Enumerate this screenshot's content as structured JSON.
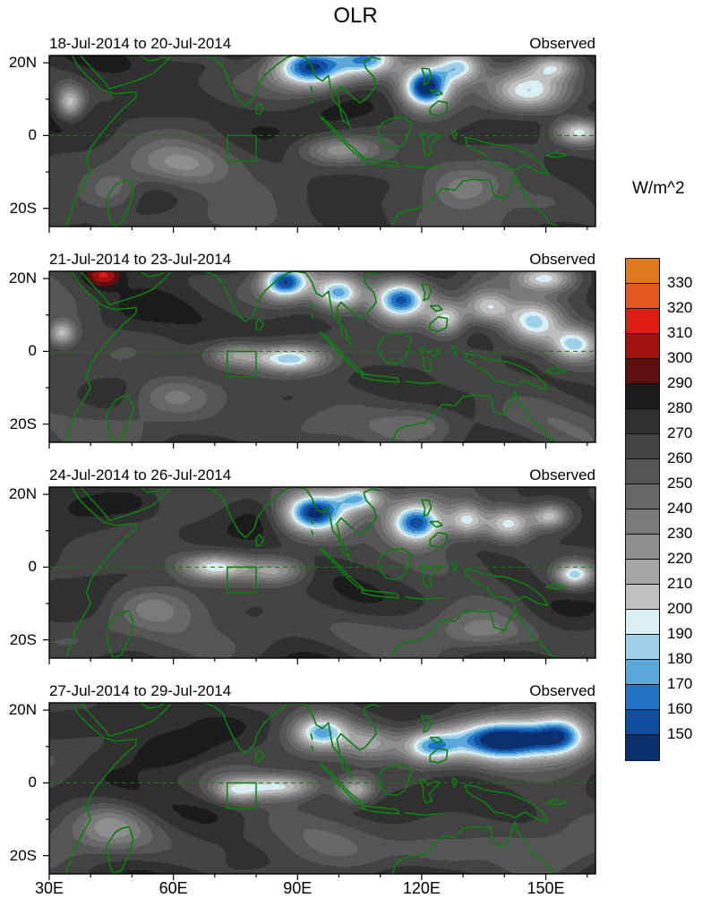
{
  "chart_data": {
    "type": "heatmap",
    "title": "OLR",
    "units": "W/m^2",
    "x_axis": {
      "ticks": [
        "30E",
        "60E",
        "90E",
        "120E",
        "150E"
      ],
      "tick_lons": [
        30,
        60,
        90,
        120,
        150
      ],
      "lon_range": [
        30,
        162
      ]
    },
    "y_axis": {
      "ticks": [
        "20N",
        "0",
        "20S"
      ],
      "tick_lats": [
        20,
        0,
        -20
      ],
      "lat_range": [
        -25,
        22
      ]
    },
    "colorbar": {
      "levels": [
        150,
        160,
        170,
        180,
        190,
        200,
        210,
        220,
        230,
        240,
        250,
        260,
        270,
        280,
        290,
        300,
        310,
        320,
        330
      ],
      "colors": [
        "#0B2F6F",
        "#114E9E",
        "#2273C4",
        "#5AA7DC",
        "#9FD0EA",
        "#D9EFF2",
        "#C0C0C0",
        "#A6A6A6",
        "#8E8E8E",
        "#7A7A7A",
        "#676767",
        "#555555",
        "#434343",
        "#303030",
        "#1B1B1B",
        "#5E100E",
        "#A01210",
        "#DD1E15",
        "#E8571E",
        "#DE7A1C"
      ]
    },
    "map": {
      "coast_color": "#0E7D12",
      "equator_line_color": "#0E7D12",
      "box_region": {
        "lon_min": 73,
        "lon_max": 80,
        "lat_min": -7,
        "lat_max": 0
      }
    },
    "panels": [
      {
        "title": "18-Jul-2014 to 20-Jul-2014",
        "source_label": "Observed",
        "base_olr": 271,
        "noise_seed": 1,
        "features": [
          {
            "lon": 93,
            "lat": 19,
            "amp": -135,
            "slon": 8,
            "slat": 5
          },
          {
            "lon": 107,
            "lat": 21,
            "amp": -85,
            "slon": 6,
            "slat": 4
          },
          {
            "lon": 121,
            "lat": 13,
            "amp": -125,
            "slon": 5,
            "slat": 5
          },
          {
            "lon": 129,
            "lat": 19,
            "amp": -80,
            "slon": 5,
            "slat": 4
          },
          {
            "lon": 146,
            "lat": 12,
            "amp": -80,
            "slon": 8,
            "slat": 5
          },
          {
            "lon": 158,
            "lat": 1,
            "amp": -75,
            "slon": 5,
            "slat": 3
          },
          {
            "lon": 152,
            "lat": 19,
            "amp": -60,
            "slon": 5,
            "slat": 3
          },
          {
            "lon": 35,
            "lat": 9,
            "amp": -70,
            "slon": 3,
            "slat": 4
          },
          {
            "lon": 63,
            "lat": -8,
            "amp": -35,
            "slon": 10,
            "slat": 5
          },
          {
            "lon": 100,
            "lat": -4,
            "amp": -35,
            "slon": 8,
            "slat": 3
          },
          {
            "lon": 130,
            "lat": -15,
            "amp": -30,
            "slon": 8,
            "slat": 5
          },
          {
            "lon": 65,
            "lat": 19,
            "amp": 18,
            "slon": 10,
            "slat": 4
          },
          {
            "lon": 45,
            "lat": -15,
            "amp": -25,
            "slon": 6,
            "slat": 5
          }
        ]
      },
      {
        "title": "21-Jul-2014 to 23-Jul-2014",
        "source_label": "Observed",
        "base_olr": 271,
        "noise_seed": 2,
        "features": [
          {
            "lon": 43,
            "lat": 21,
            "amp": 40,
            "slon": 4,
            "slat": 3
          },
          {
            "lon": 87,
            "lat": 19,
            "amp": -110,
            "slon": 5,
            "slat": 4
          },
          {
            "lon": 100,
            "lat": 16,
            "amp": -95,
            "slon": 5,
            "slat": 4
          },
          {
            "lon": 115,
            "lat": 14,
            "amp": -120,
            "slon": 6,
            "slat": 5
          },
          {
            "lon": 126,
            "lat": 9,
            "amp": -75,
            "slon": 4,
            "slat": 4
          },
          {
            "lon": 136,
            "lat": 12,
            "amp": -70,
            "slon": 5,
            "slat": 4
          },
          {
            "lon": 147,
            "lat": 8,
            "amp": -85,
            "slon": 6,
            "slat": 5
          },
          {
            "lon": 157,
            "lat": 2,
            "amp": -80,
            "slon": 5,
            "slat": 4
          },
          {
            "lon": 88,
            "lat": -2,
            "amp": -78,
            "slon": 7,
            "slat": 3
          },
          {
            "lon": 75,
            "lat": -1,
            "amp": -50,
            "slon": 6,
            "slat": 3
          },
          {
            "lon": 33,
            "lat": 5,
            "amp": -65,
            "slon": 3,
            "slat": 3
          },
          {
            "lon": 150,
            "lat": 20,
            "amp": -65,
            "slon": 6,
            "slat": 3
          },
          {
            "lon": 60,
            "lat": -12,
            "amp": -30,
            "slon": 9,
            "slat": 5
          },
          {
            "lon": 120,
            "lat": -20,
            "amp": -25,
            "slon": 8,
            "slat": 4
          }
        ]
      },
      {
        "title": "24-Jul-2014 to 26-Jul-2014",
        "source_label": "Observed",
        "base_olr": 271,
        "noise_seed": 3,
        "features": [
          {
            "lon": 94,
            "lat": 15,
            "amp": -135,
            "slon": 7,
            "slat": 5
          },
          {
            "lon": 105,
            "lat": 19,
            "amp": -80,
            "slon": 5,
            "slat": 3
          },
          {
            "lon": 119,
            "lat": 12,
            "amp": -120,
            "slon": 6,
            "slat": 5
          },
          {
            "lon": 131,
            "lat": 13,
            "amp": -75,
            "slon": 4,
            "slat": 4
          },
          {
            "lon": 141,
            "lat": 12,
            "amp": -80,
            "slon": 5,
            "slat": 4
          },
          {
            "lon": 151,
            "lat": 14,
            "amp": -70,
            "slon": 4,
            "slat": 3
          },
          {
            "lon": 157,
            "lat": -2,
            "amp": -85,
            "slon": 4,
            "slat": 3
          },
          {
            "lon": 70,
            "lat": 0,
            "amp": -70,
            "slon": 7,
            "slat": 3
          },
          {
            "lon": 85,
            "lat": -1,
            "amp": -45,
            "slon": 6,
            "slat": 3
          },
          {
            "lon": 50,
            "lat": 18,
            "amp": 15,
            "slon": 7,
            "slat": 4
          },
          {
            "lon": 55,
            "lat": -10,
            "amp": -30,
            "slon": 9,
            "slat": 5
          },
          {
            "lon": 135,
            "lat": -18,
            "amp": -25,
            "slon": 8,
            "slat": 4
          }
        ]
      },
      {
        "title": "27-Jul-2014 to 29-Jul-2014",
        "source_label": "Observed",
        "base_olr": 271,
        "noise_seed": 4,
        "features": [
          {
            "lon": 140,
            "lat": 12,
            "amp": -145,
            "slon": 11,
            "slat": 5
          },
          {
            "lon": 154,
            "lat": 13,
            "amp": -90,
            "slon": 6,
            "slat": 5
          },
          {
            "lon": 122,
            "lat": 10,
            "amp": -90,
            "slon": 6,
            "slat": 4
          },
          {
            "lon": 96,
            "lat": 14,
            "amp": -95,
            "slon": 6,
            "slat": 4
          },
          {
            "lon": 108,
            "lat": 11,
            "amp": -55,
            "slon": 6,
            "slat": 4
          },
          {
            "lon": 86,
            "lat": -1,
            "amp": -75,
            "slon": 8,
            "slat": 3
          },
          {
            "lon": 75,
            "lat": -2,
            "amp": -55,
            "slon": 5,
            "slat": 3
          },
          {
            "lon": 104,
            "lat": -2,
            "amp": -60,
            "slon": 4,
            "slat": 3
          },
          {
            "lon": 60,
            "lat": 8,
            "amp": 15,
            "slon": 9,
            "slat": 5
          },
          {
            "lon": 45,
            "lat": -12,
            "amp": -30,
            "slon": 7,
            "slat": 5
          },
          {
            "lon": 125,
            "lat": -20,
            "amp": -25,
            "slon": 9,
            "slat": 4
          }
        ]
      }
    ]
  }
}
